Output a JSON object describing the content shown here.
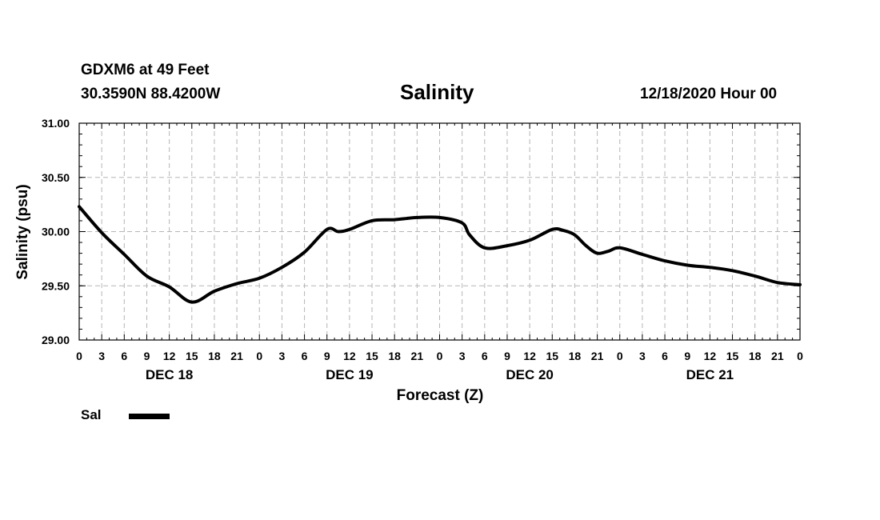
{
  "header": {
    "station": "GDXM6 at 49 Feet",
    "coords": "30.3590N 88.4200W",
    "title": "Salinity",
    "datetime": "12/18/2020 Hour 00"
  },
  "legend": {
    "label": "Sal"
  },
  "chart_data": {
    "type": "line",
    "title": "Salinity",
    "xlabel": "Forecast (Z)",
    "ylabel": "Salinity (psu)",
    "ylim": [
      29.0,
      31.0
    ],
    "yticks": [
      "29.00",
      "29.50",
      "30.00",
      "30.50",
      "31.00"
    ],
    "x_hour_labels": [
      "0",
      "3",
      "6",
      "9",
      "12",
      "15",
      "18",
      "21",
      "0",
      "3",
      "6",
      "9",
      "12",
      "15",
      "18",
      "21",
      "0",
      "3",
      "6",
      "9",
      "12",
      "15",
      "18",
      "21",
      "0",
      "3",
      "6",
      "9",
      "12",
      "15",
      "18",
      "21",
      "0"
    ],
    "day_labels": [
      "DEC 18",
      "DEC 19",
      "DEC 20",
      "DEC 21"
    ],
    "xlim_hours": [
      0,
      96
    ],
    "grid": true,
    "series": [
      {
        "name": "Sal",
        "color": "#000000",
        "x": [
          0,
          3,
          6,
          9,
          12,
          15,
          18,
          21,
          24,
          27,
          30,
          33,
          34.5,
          36,
          39,
          42,
          45,
          48,
          51,
          52,
          54,
          57,
          60,
          63,
          64.5,
          66,
          67.5,
          69,
          70.5,
          72,
          75,
          78,
          81,
          84,
          87,
          90,
          93,
          96
        ],
        "y": [
          30.23,
          29.99,
          29.79,
          29.59,
          29.49,
          29.35,
          29.45,
          29.52,
          29.57,
          29.67,
          29.81,
          30.02,
          30.0,
          30.02,
          30.1,
          30.11,
          30.13,
          30.13,
          30.08,
          29.97,
          29.85,
          29.87,
          29.92,
          30.02,
          30.01,
          29.97,
          29.87,
          29.8,
          29.82,
          29.85,
          29.79,
          29.73,
          29.69,
          29.67,
          29.64,
          29.59,
          29.53,
          29.51
        ]
      }
    ]
  }
}
